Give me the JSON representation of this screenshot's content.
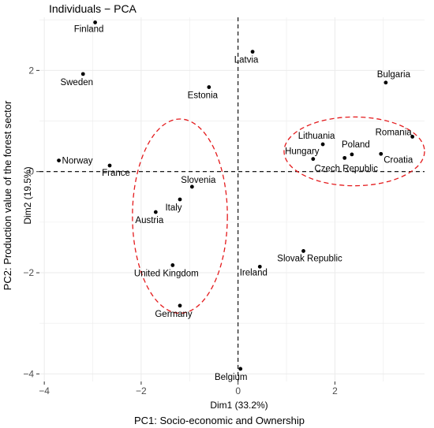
{
  "chart_data": {
    "type": "scatter",
    "title": "Individuals − PCA",
    "xlabel": "Dim1 (33.2%)",
    "ylabel": "Dim2 (19.5%)",
    "outer_xlabel": "PC1: Socio-economic and Ownership",
    "outer_ylabel": "PC2: Production value of the forest sector",
    "xlim": [
      -4.1,
      3.85
    ],
    "ylim": [
      -4.15,
      3.05
    ],
    "xticks": [
      -4,
      -2,
      0,
      2
    ],
    "yticks": [
      -4,
      -2,
      0,
      2
    ],
    "grid": true,
    "reference_lines": {
      "x": 0,
      "y": 0
    },
    "points": [
      {
        "label": "Finland",
        "x": -2.95,
        "y": 2.95
      },
      {
        "label": "Latvia",
        "x": 0.3,
        "y": 2.37
      },
      {
        "label": "Sweden",
        "x": -3.2,
        "y": 1.93
      },
      {
        "label": "Estonia",
        "x": -0.6,
        "y": 1.67
      },
      {
        "label": "Bulgaria",
        "x": 3.05,
        "y": 1.76
      },
      {
        "label": "Romania",
        "x": 3.6,
        "y": 0.69
      },
      {
        "label": "Lithuania",
        "x": 1.75,
        "y": 0.54
      },
      {
        "label": "Poland",
        "x": 2.35,
        "y": 0.34
      },
      {
        "label": "Croatia",
        "x": 2.95,
        "y": 0.35
      },
      {
        "label": "Hungary",
        "x": 1.55,
        "y": 0.25
      },
      {
        "label": "Czech Republic",
        "x": 2.2,
        "y": 0.27
      },
      {
        "label": "Norway",
        "x": -3.7,
        "y": 0.22
      },
      {
        "label": "France",
        "x": -2.65,
        "y": 0.12
      },
      {
        "label": "Slovenia",
        "x": -0.95,
        "y": -0.3
      },
      {
        "label": "Italy",
        "x": -1.2,
        "y": -0.55
      },
      {
        "label": "Austria",
        "x": -1.7,
        "y": -0.8
      },
      {
        "label": "United Kingdom",
        "x": -1.35,
        "y": -1.85
      },
      {
        "label": "Ireland",
        "x": 0.45,
        "y": -1.88
      },
      {
        "label": "Slovak Republic",
        "x": 1.35,
        "y": -1.57
      },
      {
        "label": "Germany",
        "x": -1.2,
        "y": -2.65
      },
      {
        "label": "Belgium",
        "x": 0.05,
        "y": -3.9
      }
    ],
    "highlight_ellipses": [
      {
        "cx": 2.4,
        "cy": 0.4,
        "rx": 1.45,
        "ry": 0.68,
        "color": "#e41a1c"
      },
      {
        "cx": -1.2,
        "cy": -0.88,
        "rx": 0.98,
        "ry": 1.92,
        "color": "#e41a1c"
      }
    ],
    "colors": {
      "background": "#ffffff",
      "grid": "#ebebeb",
      "points": "#000000",
      "highlight": "#e41a1c"
    }
  }
}
